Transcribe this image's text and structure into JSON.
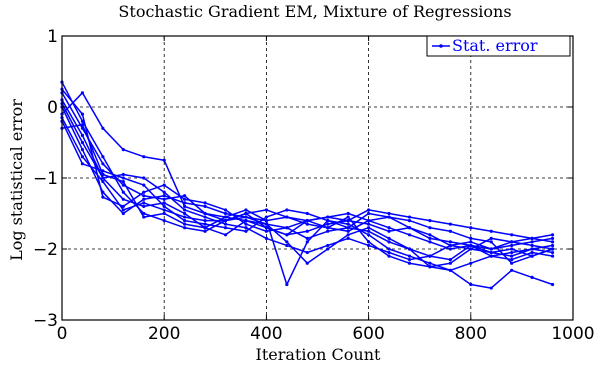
{
  "chart_data": {
    "type": "line",
    "title": "Stochastic Gradient EM, Mixture of Regressions",
    "xlabel": "Iteration Count",
    "ylabel": "Log statistical error",
    "xlim": [
      0,
      1000
    ],
    "ylim": [
      -3,
      1
    ],
    "xticks": [
      0,
      200,
      400,
      600,
      800,
      1000
    ],
    "yticks": [
      -3,
      -2,
      -1,
      0,
      1
    ],
    "xtick_labels": [
      "0",
      "200",
      "400",
      "600",
      "800",
      "1000"
    ],
    "ytick_labels": [
      "−3",
      "−2",
      "−1",
      "0",
      "1"
    ],
    "grid": true,
    "legend": {
      "position": "top-right",
      "entries": [
        "Stat. error"
      ]
    },
    "colors": {
      "series": "#0000ff"
    },
    "x": [
      0,
      40,
      80,
      120,
      160,
      200,
      240,
      280,
      320,
      360,
      400,
      440,
      480,
      520,
      560,
      600,
      640,
      680,
      720,
      760,
      800,
      840,
      880,
      920,
      960
    ],
    "series": [
      {
        "values": [
          0.35,
          -0.2,
          -0.7,
          -1.2,
          -1.5,
          -1.6,
          -1.7,
          -1.75,
          -1.6,
          -1.55,
          -1.6,
          -2.5,
          -1.9,
          -1.6,
          -1.65,
          -1.8,
          -2.0,
          -2.1,
          -2.2,
          -2.3,
          -2.5,
          -2.55,
          -2.3,
          -2.4,
          -2.5
        ]
      },
      {
        "values": [
          0.1,
          -0.4,
          -1.0,
          -1.3,
          -1.4,
          -1.35,
          -1.5,
          -1.7,
          -1.8,
          -1.6,
          -1.7,
          -1.8,
          -1.6,
          -1.7,
          -1.55,
          -1.9,
          -2.1,
          -2.2,
          -2.25,
          -2.2,
          -2.0,
          -2.05,
          -2.1,
          -2.0,
          -2.05
        ]
      },
      {
        "values": [
          -0.1,
          0.2,
          -0.3,
          -0.6,
          -0.7,
          -0.75,
          -1.4,
          -1.5,
          -1.55,
          -1.6,
          -1.65,
          -1.7,
          -1.6,
          -1.55,
          -1.5,
          -1.6,
          -1.7,
          -1.8,
          -1.9,
          -2.0,
          -1.95,
          -2.0,
          -1.9,
          -1.85,
          -1.9
        ]
      },
      {
        "values": [
          0.0,
          -0.6,
          -1.2,
          -1.5,
          -1.3,
          -1.25,
          -1.35,
          -1.4,
          -1.5,
          -1.55,
          -1.65,
          -1.9,
          -2.2,
          -2.0,
          -1.8,
          -1.7,
          -1.85,
          -2.0,
          -2.1,
          -2.15,
          -1.95,
          -2.05,
          -2.0,
          -2.1,
          -2.0
        ]
      },
      {
        "values": [
          -0.2,
          -0.8,
          -0.9,
          -1.0,
          -1.1,
          -1.4,
          -1.6,
          -1.65,
          -1.7,
          -1.75,
          -1.55,
          -1.45,
          -1.5,
          -1.6,
          -1.7,
          -1.75,
          -1.9,
          -2.0,
          -2.25,
          -2.3,
          -2.2,
          -2.1,
          -2.15,
          -2.05,
          -2.1
        ]
      },
      {
        "values": [
          0.2,
          -0.3,
          -0.8,
          -1.1,
          -1.25,
          -1.3,
          -1.25,
          -1.5,
          -1.6,
          -1.5,
          -1.7,
          -1.8,
          -1.75,
          -1.65,
          -1.6,
          -1.65,
          -1.75,
          -1.7,
          -1.85,
          -1.9,
          -1.95,
          -2.1,
          -2.05,
          -2.0,
          -1.95
        ]
      },
      {
        "values": [
          -0.3,
          -0.25,
          -0.95,
          -1.05,
          -1.55,
          -1.5,
          -1.65,
          -1.7,
          -1.55,
          -1.45,
          -1.6,
          -1.55,
          -1.65,
          -1.7,
          -1.75,
          -1.6,
          -1.55,
          -1.7,
          -1.8,
          -1.95,
          -2.0,
          -1.85,
          -1.9,
          -1.95,
          -2.0
        ]
      },
      {
        "values": [
          0.05,
          -0.5,
          -1.0,
          -0.95,
          -1.0,
          -1.2,
          -1.45,
          -1.55,
          -1.65,
          -1.7,
          -1.85,
          -1.95,
          -2.05,
          -1.95,
          -1.85,
          -1.95,
          -2.05,
          -2.15,
          -2.1,
          -1.95,
          -1.9,
          -2.0,
          -1.95,
          -1.9,
          -1.85
        ]
      },
      {
        "values": [
          0.25,
          -0.1,
          -1.27,
          -1.4,
          -1.2,
          -1.1,
          -1.3,
          -1.35,
          -1.45,
          -1.65,
          -1.75,
          -1.7,
          -1.85,
          -1.75,
          -1.7,
          -1.5,
          -1.55,
          -1.6,
          -1.7,
          -1.75,
          -1.85,
          -1.9,
          -2.2,
          -2.1,
          -2.0
        ]
      },
      {
        "values": [
          -0.15,
          -0.7,
          -1.05,
          -1.45,
          -1.35,
          -1.45,
          -1.55,
          -1.6,
          -1.6,
          -1.5,
          -1.45,
          -1.55,
          -1.6,
          -1.55,
          -1.6,
          -1.45,
          -1.5,
          -1.55,
          -1.6,
          -1.65,
          -1.7,
          -1.75,
          -1.8,
          -1.85,
          -1.8
        ]
      }
    ]
  }
}
